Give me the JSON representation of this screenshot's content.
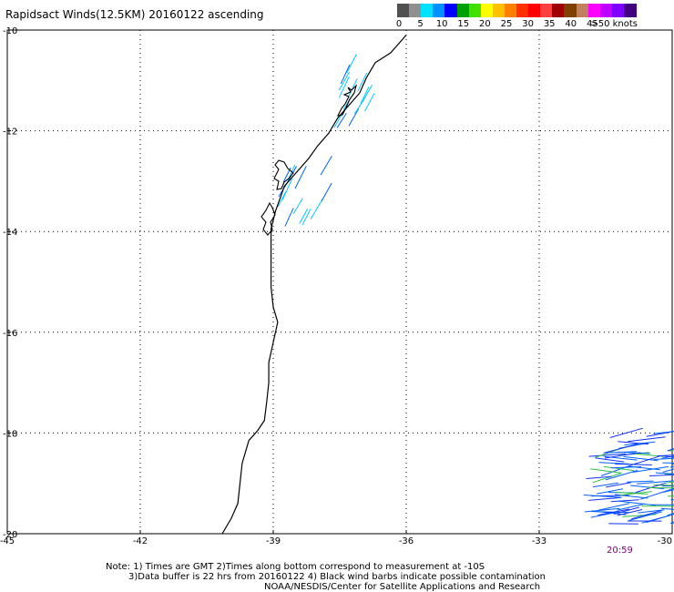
{
  "title": "Rapidsact Winds(12.5KM) 20160122 ascending",
  "legend": {
    "ticks": [
      "0",
      "5",
      "10",
      "15",
      "20",
      "25",
      "30",
      "35",
      "40",
      "45",
      ">50 knots"
    ],
    "colors": [
      "#505050",
      "#909090",
      "#00e0ff",
      "#0090ff",
      "#0000ff",
      "#00a000",
      "#40e000",
      "#ffff00",
      "#ffc000",
      "#ff8000",
      "#ff3000",
      "#ff0000",
      "#ff4040",
      "#a00000",
      "#804000",
      "#c08060",
      "#ff00ff",
      "#c000ff",
      "#8000ff",
      "#400080"
    ]
  },
  "time_label": "20:59",
  "notes": {
    "line1": "Note: 1) Times are GMT 2)Times along bottom correspond to measurement at -10S",
    "line2": "3)Data buffer is 22 hrs from 20160122 4) Black wind barbs indicate possible contamination",
    "line3": "NOAA/NESDIS/Center for Satellite Applications and Research"
  },
  "chart_data": {
    "type": "map",
    "title": "Rapidsact Winds(12.5KM) 20160122 ascending",
    "xlim": [
      -45,
      -30
    ],
    "ylim": [
      -20,
      -10
    ],
    "x_ticks": [
      -45,
      -42,
      -39,
      -36,
      -33,
      -30
    ],
    "x_tick_labels": [
      "-45",
      "-42",
      "-39",
      "-36",
      "-33",
      "-30"
    ],
    "y_ticks": [
      -10,
      -12,
      -14,
      -16,
      -18,
      -20
    ],
    "y_tick_labels": [
      "-10",
      "-12",
      "-14",
      "-16",
      "-18",
      "-20"
    ],
    "grid": true,
    "coastline": [
      [
        -36.0,
        -10.1
      ],
      [
        -36.35,
        -10.45
      ],
      [
        -36.7,
        -10.65
      ],
      [
        -36.9,
        -10.95
      ],
      [
        -37.05,
        -11.25
      ],
      [
        -37.3,
        -11.5
      ],
      [
        -37.55,
        -11.75
      ],
      [
        -37.75,
        -12.05
      ],
      [
        -38.0,
        -12.3
      ],
      [
        -38.2,
        -12.55
      ],
      [
        -38.5,
        -12.85
      ],
      [
        -38.75,
        -13.1
      ],
      [
        -38.85,
        -13.35
      ],
      [
        -38.95,
        -13.6
      ],
      [
        -39.05,
        -13.95
      ],
      [
        -39.05,
        -14.3
      ],
      [
        -39.05,
        -14.7
      ],
      [
        -39.05,
        -15.1
      ],
      [
        -39.0,
        -15.5
      ],
      [
        -38.9,
        -15.8
      ],
      [
        -39.0,
        -16.2
      ],
      [
        -39.1,
        -16.6
      ],
      [
        -39.1,
        -17.0
      ],
      [
        -39.15,
        -17.4
      ],
      [
        -39.2,
        -17.75
      ],
      [
        -39.35,
        -17.95
      ],
      [
        -39.55,
        -18.15
      ],
      [
        -39.7,
        -18.6
      ],
      [
        -39.75,
        -19.0
      ],
      [
        -39.8,
        -19.4
      ],
      [
        -39.95,
        -19.7
      ],
      [
        -40.15,
        -20.0
      ]
    ],
    "wind_swaths": [
      {
        "lon_range": [
          -37.7,
          -36.9
        ],
        "lat_range": [
          -12.0,
          -10.8
        ],
        "speed_knots": [
          5,
          10
        ]
      },
      {
        "lon_range": [
          -38.9,
          -37.9
        ],
        "lat_range": [
          -13.9,
          -12.8
        ],
        "speed_knots": [
          5,
          10
        ]
      },
      {
        "lon_range": [
          -32.0,
          -30.0
        ],
        "lat_range": [
          -19.8,
          -18.0
        ],
        "speed_knots": [
          10,
          20
        ]
      }
    ]
  }
}
